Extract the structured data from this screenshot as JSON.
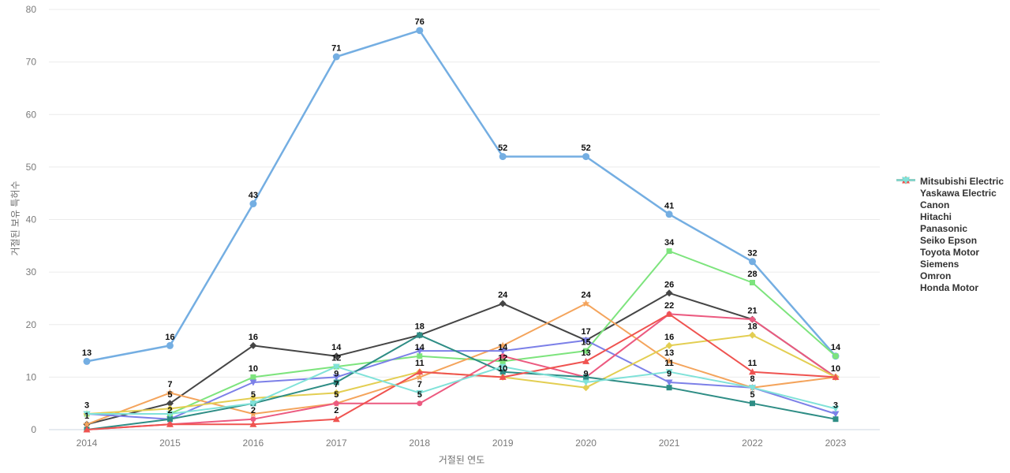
{
  "chart_data": {
    "type": "line",
    "title": "",
    "xlabel": "거절된 연도",
    "ylabel": "거절된 보유 특허수",
    "x": [
      2014,
      2015,
      2016,
      2017,
      2018,
      2019,
      2020,
      2021,
      2022,
      2023
    ],
    "ylim": [
      0,
      80
    ],
    "yticks": [
      0,
      10,
      20,
      30,
      40,
      50,
      60,
      70,
      80
    ],
    "grid": true,
    "legend_position": "right",
    "series": [
      {
        "name": "Mitsubishi Electric",
        "color": "#74AEE2",
        "marker": "circle",
        "values": [
          13,
          16,
          43,
          71,
          76,
          52,
          52,
          41,
          32,
          14
        ],
        "labels": [
          13,
          16,
          43,
          71,
          76,
          52,
          52,
          41,
          32,
          null
        ]
      },
      {
        "name": "Yaskawa Electric",
        "color": "#454545",
        "marker": "diamond",
        "values": [
          1,
          5,
          16,
          14,
          18,
          24,
          17,
          26,
          21,
          10
        ],
        "labels": [
          1,
          5,
          16,
          14,
          null,
          24,
          null,
          26,
          null,
          null
        ]
      },
      {
        "name": "Canon",
        "color": "#7DE47D",
        "marker": "square",
        "values": [
          3,
          3,
          10,
          12,
          14,
          13,
          15,
          34,
          28,
          14
        ],
        "labels": [
          3,
          null,
          10,
          null,
          14,
          null,
          15,
          34,
          28,
          14
        ]
      },
      {
        "name": "Hitachi",
        "color": "#F4A45C",
        "marker": "star",
        "values": [
          1,
          7,
          3,
          5,
          10,
          16,
          24,
          13,
          8,
          10
        ],
        "labels": [
          null,
          7,
          null,
          null,
          null,
          null,
          24,
          13,
          8,
          10
        ]
      },
      {
        "name": "Panasonic",
        "color": "#7C80E8",
        "marker": "triangle-down",
        "values": [
          3,
          2,
          9,
          10,
          15,
          15,
          17,
          9,
          8,
          3
        ],
        "labels": [
          null,
          null,
          null,
          null,
          null,
          null,
          17,
          9,
          null,
          3
        ]
      },
      {
        "name": "Seiko Epson",
        "color": "#EC5A80",
        "marker": "circle",
        "values": [
          0,
          1,
          2,
          5,
          5,
          14,
          10,
          22,
          21,
          10
        ],
        "labels": [
          null,
          null,
          2,
          5,
          5,
          14,
          null,
          22,
          21,
          null
        ]
      },
      {
        "name": "Toyota Motor",
        "color": "#E3CE52",
        "marker": "diamond",
        "values": [
          3,
          4,
          6,
          7,
          11,
          10,
          8,
          16,
          18,
          10
        ],
        "labels": [
          null,
          null,
          null,
          7,
          null,
          null,
          null,
          16,
          18,
          null
        ]
      },
      {
        "name": "Siemens",
        "color": "#2E8D85",
        "marker": "square",
        "values": [
          0,
          2,
          5,
          9,
          18,
          11,
          10,
          8,
          5,
          2
        ],
        "labels": [
          null,
          2,
          null,
          9,
          18,
          null,
          null,
          null,
          5,
          null
        ]
      },
      {
        "name": "Omron",
        "color": "#EF5350",
        "marker": "triangle-up",
        "values": [
          0,
          1,
          1,
          2,
          11,
          10,
          13,
          22,
          11,
          10
        ],
        "labels": [
          null,
          null,
          null,
          2,
          11,
          10,
          13,
          null,
          11,
          null
        ]
      },
      {
        "name": "Honda Motor",
        "color": "#80E2D9",
        "marker": "triangle-down",
        "values": [
          3,
          3,
          5,
          12,
          7,
          12,
          9,
          11,
          8,
          4
        ],
        "labels": [
          null,
          null,
          5,
          12,
          7,
          12,
          9,
          11,
          null,
          null
        ]
      }
    ]
  }
}
